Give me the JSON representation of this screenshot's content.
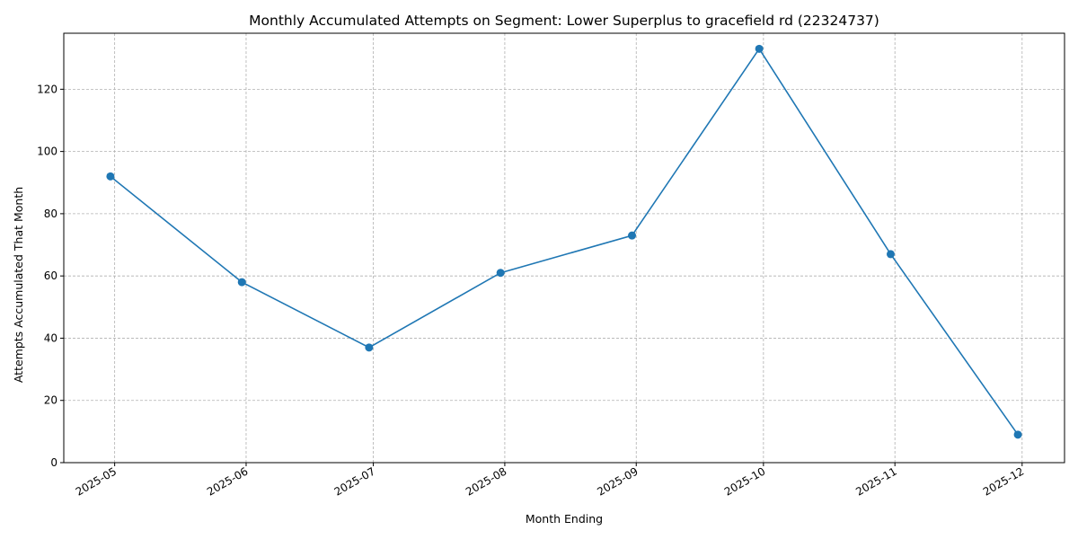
{
  "chart_data": {
    "type": "line",
    "title": "Monthly Accumulated Attempts on Segment: Lower Superplus to gracefield rd (22324737)",
    "xlabel": "Month Ending",
    "ylabel": "Attempts Accumulated That Month",
    "x": [
      "2025-04-30",
      "2025-05-31",
      "2025-06-30",
      "2025-07-31",
      "2025-08-31",
      "2025-09-30",
      "2025-10-31",
      "2025-11-30"
    ],
    "x_ticks": [
      "2025-05",
      "2025-06",
      "2025-07",
      "2025-08",
      "2025-09",
      "2025-10",
      "2025-11",
      "2025-12"
    ],
    "x_tick_dates": [
      "2025-05-01",
      "2025-06-01",
      "2025-07-01",
      "2025-08-01",
      "2025-09-01",
      "2025-10-01",
      "2025-11-01",
      "2025-12-01"
    ],
    "xlim": [
      "2025-04-19",
      "2025-12-11"
    ],
    "y_ticks": [
      0,
      20,
      40,
      60,
      80,
      100,
      120
    ],
    "ylim": [
      0,
      138
    ],
    "grid": true,
    "series": [
      {
        "values": [
          92,
          58,
          37,
          61,
          73,
          133,
          67,
          9
        ],
        "color": "#1f77b4",
        "marker": "circle"
      }
    ]
  }
}
